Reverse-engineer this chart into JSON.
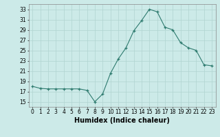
{
  "x": [
    0,
    1,
    2,
    3,
    4,
    5,
    6,
    7,
    8,
    9,
    10,
    11,
    12,
    13,
    14,
    15,
    16,
    17,
    18,
    19,
    20,
    21,
    22,
    23
  ],
  "y": [
    18.0,
    17.6,
    17.5,
    17.5,
    17.5,
    17.5,
    17.5,
    17.2,
    15.0,
    16.5,
    20.5,
    23.3,
    25.5,
    28.8,
    30.8,
    33.0,
    32.5,
    29.5,
    29.0,
    26.5,
    25.5,
    25.0,
    22.2,
    22.0
  ],
  "xlabel": "Humidex (Indice chaleur)",
  "xlim": [
    -0.5,
    23.5
  ],
  "ylim": [
    14,
    34
  ],
  "yticks": [
    15,
    17,
    19,
    21,
    23,
    25,
    27,
    29,
    31,
    33
  ],
  "xticks": [
    0,
    1,
    2,
    3,
    4,
    5,
    6,
    7,
    8,
    9,
    10,
    11,
    12,
    13,
    14,
    15,
    16,
    17,
    18,
    19,
    20,
    21,
    22,
    23
  ],
  "line_color": "#2d7a6e",
  "marker": "+",
  "bg_color": "#cceae8",
  "grid_color": "#b0d4d0",
  "tick_fontsize": 5.5,
  "xlabel_fontsize": 7
}
